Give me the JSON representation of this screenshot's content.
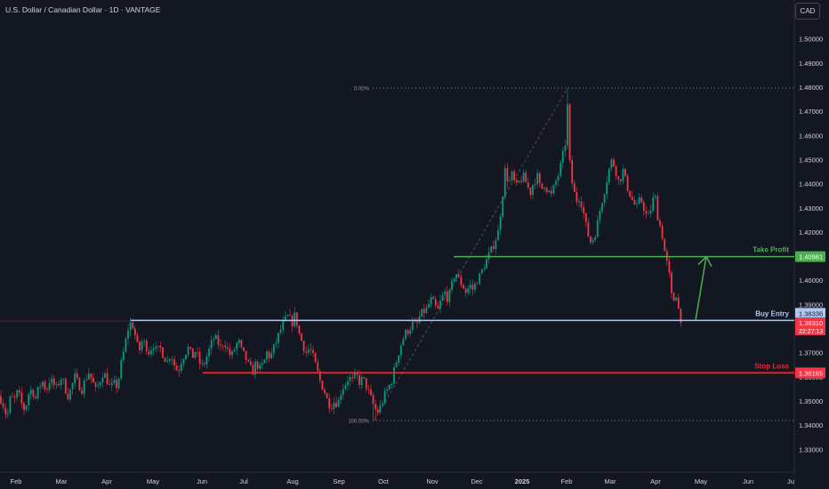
{
  "header": {
    "title": "U.S. Dollar / Canadian Dollar · 1D · VANTAGE",
    "currency_button": "CAD"
  },
  "colors": {
    "background": "#131722",
    "up_candle": "#089981",
    "down_candle": "#f23645",
    "take_profit": "#4caf50",
    "stop_loss": "#ff1f1f",
    "entry_line": "#b2c7f0",
    "fib_line": "#787b86"
  },
  "chart_data": {
    "type": "candlestick",
    "y_axis": {
      "range": [
        1.325,
        1.505
      ],
      "ticks": [
        "1.50000",
        "1.49000",
        "1.48000",
        "1.47000",
        "1.46000",
        "1.45000",
        "1.44000",
        "1.43000",
        "1.42000",
        "1.41000",
        "1.40000",
        "1.39000",
        "1.37000",
        "1.36000",
        "1.35000",
        "1.34000",
        "1.33000"
      ]
    },
    "x_axis": {
      "labels": [
        "Feb",
        "Mar",
        "Apr",
        "May",
        "Jun",
        "Jul",
        "Aug",
        "Sep",
        "Oct",
        "Nov",
        "Dec",
        "2025",
        "Feb",
        "Mar",
        "Apr",
        "May",
        "Jun",
        "Ju"
      ]
    },
    "fib_levels": [
      {
        "label": "0.00%",
        "value": 1.4797
      },
      {
        "label": "100.00%",
        "value": 1.3419
      }
    ],
    "levels": [
      {
        "label": "Take Profit",
        "value": 1.40981,
        "price_tag": "1.40981"
      },
      {
        "label": "Buy Entry",
        "value": 1.38336,
        "price_tag": "1.38336"
      },
      {
        "label": "Stop Loss",
        "value": 1.36165,
        "price_tag": "1.36165"
      }
    ],
    "current_price": {
      "value": 1.3831,
      "price_tag": "1.38310",
      "countdown": "22:27:13"
    },
    "price_path": [
      [
        0,
        1.352
      ],
      [
        4,
        1.348
      ],
      [
        8,
        1.343
      ],
      [
        12,
        1.352
      ],
      [
        16,
        1.35
      ],
      [
        20,
        1.354
      ],
      [
        24,
        1.349
      ],
      [
        28,
        1.346
      ],
      [
        32,
        1.353
      ],
      [
        36,
        1.355
      ],
      [
        40,
        1.351
      ],
      [
        44,
        1.356
      ],
      [
        48,
        1.358
      ],
      [
        52,
        1.354
      ],
      [
        56,
        1.359
      ],
      [
        60,
        1.357
      ],
      [
        64,
        1.355
      ],
      [
        68,
        1.36
      ],
      [
        72,
        1.357
      ],
      [
        76,
        1.352
      ],
      [
        80,
        1.355
      ],
      [
        84,
        1.36
      ],
      [
        88,
        1.357
      ],
      [
        92,
        1.355
      ],
      [
        96,
        1.359
      ],
      [
        100,
        1.362
      ],
      [
        104,
        1.358
      ],
      [
        108,
        1.354
      ],
      [
        112,
        1.358
      ],
      [
        116,
        1.362
      ],
      [
        120,
        1.359
      ],
      [
        124,
        1.355
      ],
      [
        128,
        1.357
      ],
      [
        132,
        1.356
      ],
      [
        136,
        1.365
      ],
      [
        140,
        1.372
      ],
      [
        144,
        1.38
      ],
      [
        148,
        1.383
      ],
      [
        152,
        1.377
      ],
      [
        156,
        1.37
      ],
      [
        160,
        1.375
      ],
      [
        164,
        1.373
      ],
      [
        168,
        1.37
      ],
      [
        172,
        1.374
      ],
      [
        176,
        1.37
      ],
      [
        180,
        1.372
      ],
      [
        184,
        1.369
      ],
      [
        188,
        1.366
      ],
      [
        192,
        1.37
      ],
      [
        196,
        1.365
      ],
      [
        200,
        1.362
      ],
      [
        204,
        1.367
      ],
      [
        208,
        1.37
      ],
      [
        212,
        1.372
      ],
      [
        216,
        1.368
      ],
      [
        220,
        1.371
      ],
      [
        224,
        1.366
      ],
      [
        228,
        1.364
      ],
      [
        232,
        1.368
      ],
      [
        236,
        1.372
      ],
      [
        240,
        1.376
      ],
      [
        244,
        1.375
      ],
      [
        248,
        1.372
      ],
      [
        252,
        1.375
      ],
      [
        256,
        1.371
      ],
      [
        260,
        1.368
      ],
      [
        264,
        1.372
      ],
      [
        268,
        1.375
      ],
      [
        272,
        1.37
      ],
      [
        276,
        1.368
      ],
      [
        280,
        1.364
      ],
      [
        284,
        1.362
      ],
      [
        288,
        1.366
      ],
      [
        292,
        1.363
      ],
      [
        296,
        1.365
      ],
      [
        300,
        1.37
      ],
      [
        304,
        1.368
      ],
      [
        308,
        1.372
      ],
      [
        312,
        1.376
      ],
      [
        316,
        1.38
      ],
      [
        320,
        1.383
      ],
      [
        324,
        1.385
      ],
      [
        328,
        1.382
      ],
      [
        332,
        1.386
      ],
      [
        336,
        1.378
      ],
      [
        340,
        1.374
      ],
      [
        344,
        1.37
      ],
      [
        348,
        1.372
      ],
      [
        352,
        1.368
      ],
      [
        356,
        1.363
      ],
      [
        360,
        1.358
      ],
      [
        364,
        1.355
      ],
      [
        368,
        1.35
      ],
      [
        372,
        1.348
      ],
      [
        376,
        1.35
      ],
      [
        380,
        1.349
      ],
      [
        384,
        1.355
      ],
      [
        388,
        1.357
      ],
      [
        392,
        1.36
      ],
      [
        396,
        1.358
      ],
      [
        400,
        1.361
      ],
      [
        404,
        1.358
      ],
      [
        408,
        1.359
      ],
      [
        412,
        1.356
      ],
      [
        416,
        1.352
      ],
      [
        420,
        1.348
      ],
      [
        424,
        1.345
      ],
      [
        428,
        1.348
      ],
      [
        432,
        1.352
      ],
      [
        436,
        1.355
      ],
      [
        440,
        1.358
      ],
      [
        444,
        1.364
      ],
      [
        448,
        1.37
      ],
      [
        452,
        1.375
      ],
      [
        456,
        1.378
      ],
      [
        460,
        1.38
      ],
      [
        464,
        1.382
      ],
      [
        468,
        1.381
      ],
      [
        472,
        1.385
      ],
      [
        476,
        1.387
      ],
      [
        480,
        1.388
      ],
      [
        484,
        1.392
      ],
      [
        488,
        1.39
      ],
      [
        492,
        1.387
      ],
      [
        496,
        1.392
      ],
      [
        500,
        1.395
      ],
      [
        504,
        1.392
      ],
      [
        508,
        1.398
      ],
      [
        512,
        1.404
      ],
      [
        516,
        1.4
      ],
      [
        520,
        1.398
      ],
      [
        524,
        1.395
      ],
      [
        528,
        1.398
      ],
      [
        532,
        1.396
      ],
      [
        536,
        1.4
      ],
      [
        540,
        1.402
      ],
      [
        544,
        1.406
      ],
      [
        548,
        1.409
      ],
      [
        552,
        1.412
      ],
      [
        556,
        1.416
      ],
      [
        560,
        1.42
      ],
      [
        564,
        1.432
      ],
      [
        568,
        1.446
      ],
      [
        572,
        1.44
      ],
      [
        576,
        1.444
      ],
      [
        580,
        1.438
      ],
      [
        584,
        1.441
      ],
      [
        588,
        1.443
      ],
      [
        592,
        1.44
      ],
      [
        596,
        1.436
      ],
      [
        600,
        1.441
      ],
      [
        604,
        1.443
      ],
      [
        608,
        1.437
      ],
      [
        612,
        1.44
      ],
      [
        616,
        1.437
      ],
      [
        620,
        1.435
      ],
      [
        624,
        1.44
      ],
      [
        628,
        1.444
      ],
      [
        632,
        1.45
      ],
      [
        636,
        1.458
      ],
      [
        638,
        1.472
      ],
      [
        640,
        1.45
      ],
      [
        644,
        1.438
      ],
      [
        648,
        1.433
      ],
      [
        652,
        1.435
      ],
      [
        656,
        1.428
      ],
      [
        660,
        1.42
      ],
      [
        664,
        1.416
      ],
      [
        668,
        1.418
      ],
      [
        672,
        1.424
      ],
      [
        676,
        1.432
      ],
      [
        680,
        1.438
      ],
      [
        684,
        1.445
      ],
      [
        688,
        1.45
      ],
      [
        692,
        1.446
      ],
      [
        696,
        1.44
      ],
      [
        700,
        1.446
      ],
      [
        704,
        1.44
      ],
      [
        708,
        1.436
      ],
      [
        712,
        1.432
      ],
      [
        716,
        1.43
      ],
      [
        720,
        1.434
      ],
      [
        724,
        1.43
      ],
      [
        728,
        1.425
      ],
      [
        732,
        1.43
      ],
      [
        736,
        1.436
      ],
      [
        740,
        1.425
      ],
      [
        744,
        1.42
      ],
      [
        748,
        1.41
      ],
      [
        752,
        1.403
      ],
      [
        756,
        1.39
      ],
      [
        760,
        1.395
      ],
      [
        764,
        1.385
      ],
      [
        768,
        1.383
      ]
    ]
  }
}
